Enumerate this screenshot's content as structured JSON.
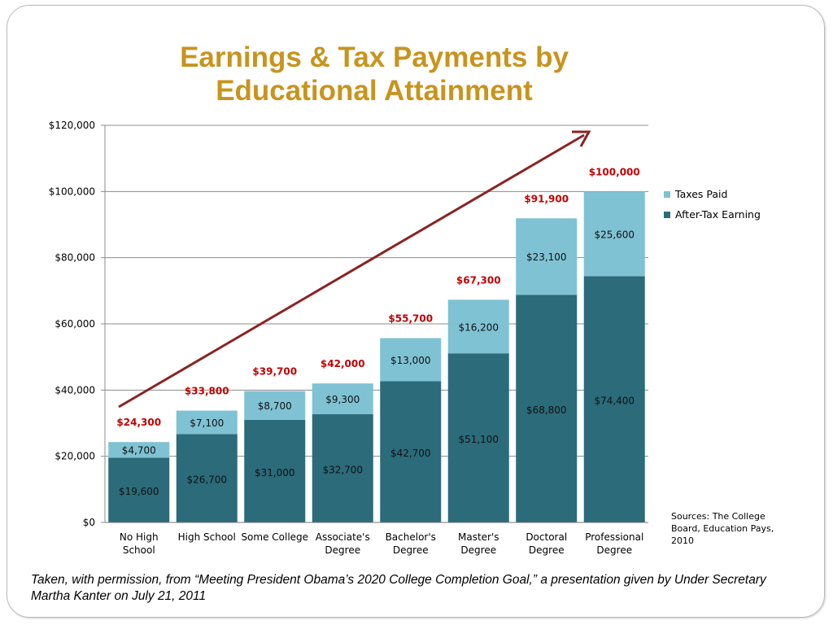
{
  "title": "Earnings & Tax Payments by Educational Attainment",
  "legend": [
    {
      "label": "Taxes Paid",
      "color": "#7fc2d4"
    },
    {
      "label": "After-Tax Earning",
      "color": "#2b6b7a"
    }
  ],
  "sources": "Sources: The College Board, Education Pays, 2010",
  "caption": "Taken, with permission, from “Meeting President Obama’s 2020 College Completion Goal,” a presentation given by Under Secretary Martha Kanter on July 21, 2011",
  "colors": {
    "total_label": "#c00000",
    "trend_arrow": "#8b2323",
    "after_tax": "#2b6b7a",
    "taxes": "#7fc2d4"
  },
  "chart_data": {
    "type": "bar",
    "stacked": true,
    "categories": [
      [
        "No High",
        "School"
      ],
      [
        "High School"
      ],
      [
        "Some College"
      ],
      [
        "Associate's",
        "Degree"
      ],
      [
        "Bachelor's",
        "Degree"
      ],
      [
        "Master's",
        "Degree"
      ],
      [
        "Doctoral",
        "Degree"
      ],
      [
        "Professional",
        "Degree"
      ]
    ],
    "series": [
      {
        "name": "After-Tax Earning",
        "values": [
          19600,
          26700,
          31000,
          32700,
          42700,
          51100,
          68800,
          74400
        ],
        "labels": [
          "$19,600",
          "$26,700",
          "$31,000",
          "$32,700",
          "$42,700",
          "$51,100",
          "$68,800",
          "$74,400"
        ]
      },
      {
        "name": "Taxes Paid",
        "values": [
          4700,
          7100,
          8700,
          9300,
          13000,
          16200,
          23100,
          25600
        ],
        "labels": [
          "$4,700",
          "$7,100",
          "$8,700",
          "$9,300",
          "$13,000",
          "$16,200",
          "$23,100",
          "$25,600"
        ]
      }
    ],
    "totals": [
      24300,
      33800,
      39700,
      42000,
      55700,
      67300,
      91900,
      100000
    ],
    "total_labels": [
      "$24,300",
      "$33,800",
      "$39,700",
      "$42,000",
      "$55,700",
      "$67,300",
      "$91,900",
      "$100,000"
    ],
    "ylim": [
      0,
      120000
    ],
    "yticks": [
      0,
      20000,
      40000,
      60000,
      80000,
      100000,
      120000
    ],
    "ytick_labels": [
      "$0",
      "$20,000",
      "$40,000",
      "$60,000",
      "$80,000",
      "$100,000",
      "$120,000"
    ],
    "grid": true,
    "legend_position": "right",
    "annotation": "upward trend arrow"
  }
}
